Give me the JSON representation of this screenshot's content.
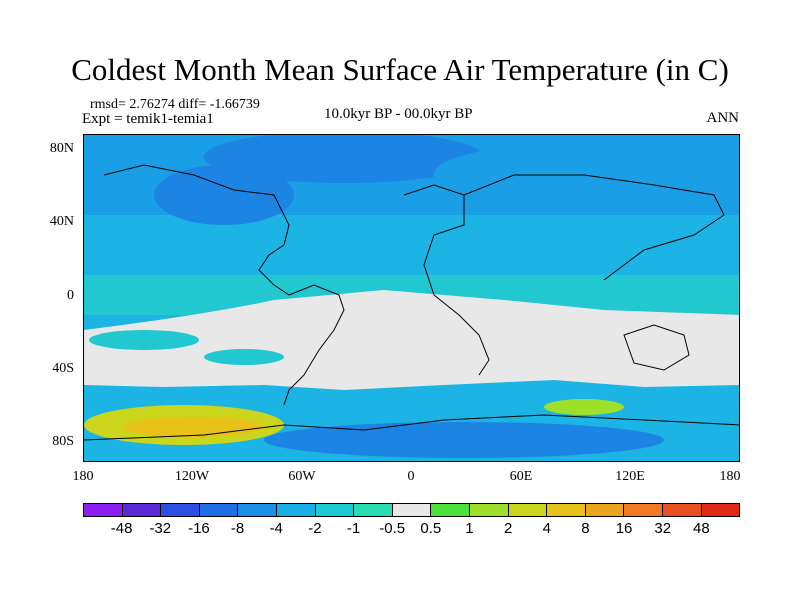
{
  "header": {
    "title": "Coldest Month Mean Surface Air Temperature (in C)",
    "stats": "rmsd= 2.76274 diff= -1.66739",
    "experiment": "Expt = temik1-temia1",
    "period": "10.0kyr BP - 00.0kyr BP",
    "season": "ANN"
  },
  "axes": {
    "lat_labels": [
      "80N",
      "40N",
      "0",
      "40S",
      "80S"
    ],
    "lon_labels": [
      "180",
      "120W",
      "60W",
      "0",
      "60E",
      "120E",
      "180"
    ]
  },
  "colorbar": {
    "labels": [
      "-48",
      "-32",
      "-16",
      "-8",
      "-4",
      "-2",
      "-1",
      "-0.5",
      "0.5",
      "1",
      "2",
      "4",
      "8",
      "16",
      "32",
      "48"
    ],
    "colors": [
      "#8d1ff0",
      "#5d2bd6",
      "#2b4fe0",
      "#1f6fe6",
      "#1b8fe8",
      "#17aee6",
      "#19c9d3",
      "#27dcb1",
      "#e8e8e8",
      "#4ee03a",
      "#9ee02a",
      "#cbd51c",
      "#e8c21a",
      "#eba51e",
      "#ef7a22",
      "#e9501f",
      "#e02a12"
    ]
  },
  "map": {
    "lon_range": [
      -180,
      180
    ],
    "lat_range": [
      -90,
      90
    ]
  }
}
